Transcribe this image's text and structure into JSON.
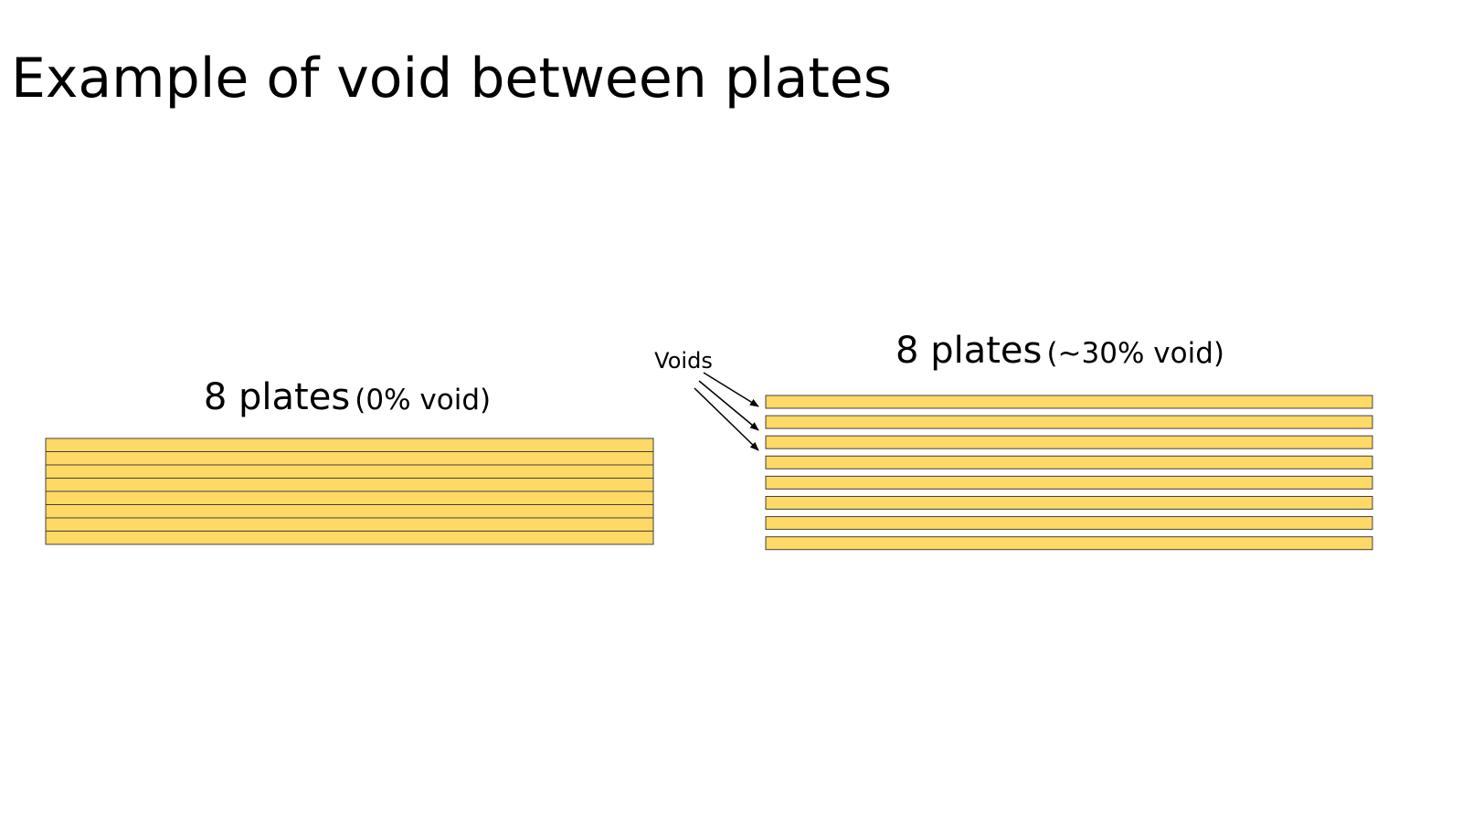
{
  "title": "Example of void between plates",
  "stacks": [
    {
      "label": "8 plates",
      "note": "(0% void)"
    },
    {
      "label": "8 plates",
      "note": "(~30% void)"
    }
  ],
  "annotation": "Voids"
}
